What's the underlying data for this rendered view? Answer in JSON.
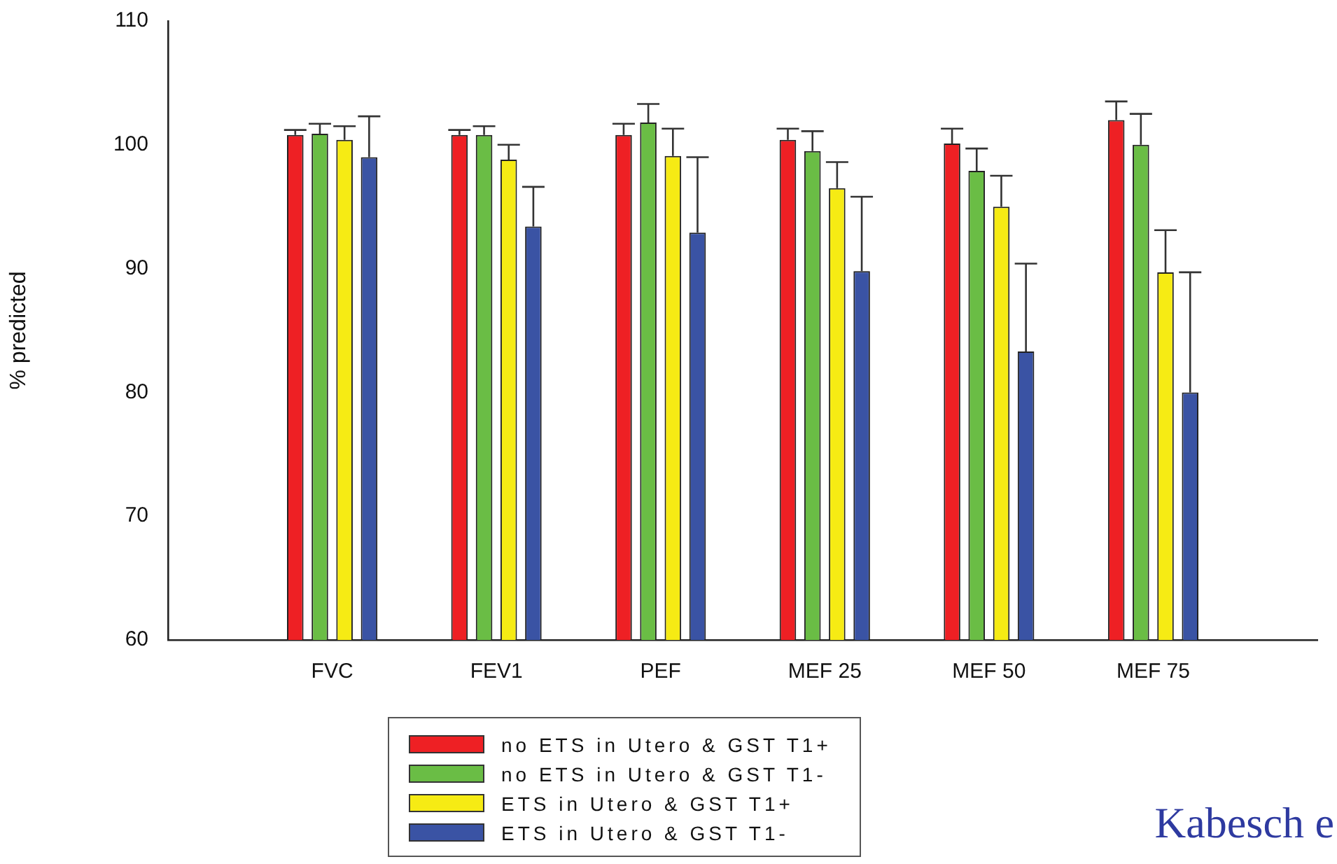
{
  "chart_data": {
    "type": "bar",
    "ylabel": "% predicted",
    "categories": [
      null,
      "FVC",
      "FEV1",
      "PEF",
      "MEF 25",
      "MEF 50",
      "MEF 75",
      null
    ],
    "series": [
      {
        "name": "no ETS in Utero & GST T1+",
        "color": "#ee2024",
        "values": [
          null,
          100.8,
          100.8,
          100.8,
          100.4,
          100.1,
          102.0,
          null
        ],
        "errors": [
          null,
          [
            100.8,
            101.2
          ],
          [
            100.8,
            101.2
          ],
          [
            100.8,
            101.7
          ],
          [
            100.4,
            101.3
          ],
          [
            100.1,
            101.3
          ],
          [
            102.0,
            103.5
          ],
          null
        ]
      },
      {
        "name": "no ETS in Utero & GST T1-",
        "color": "#6abd45",
        "values": [
          null,
          100.9,
          100.8,
          101.8,
          99.5,
          97.9,
          100.0,
          null
        ],
        "errors": [
          null,
          [
            100.9,
            101.7
          ],
          [
            100.8,
            101.5
          ],
          [
            101.8,
            103.3
          ],
          [
            99.5,
            101.1
          ],
          [
            97.9,
            99.7
          ],
          [
            100.0,
            102.5
          ],
          null
        ]
      },
      {
        "name": "ETS in Utero & GST T1+",
        "color": "#f6eb14",
        "values": [
          null,
          100.4,
          98.8,
          99.1,
          96.5,
          95.0,
          89.7,
          null
        ],
        "errors": [
          null,
          [
            100.4,
            101.5
          ],
          [
            98.8,
            100.0
          ],
          [
            99.1,
            101.3
          ],
          [
            96.5,
            98.6
          ],
          [
            95.0,
            97.5
          ],
          [
            89.7,
            93.1
          ],
          null
        ]
      },
      {
        "name": "ETS in Utero & GST T1-",
        "color": "#3a53a4",
        "values": [
          null,
          99.0,
          93.4,
          92.9,
          89.8,
          83.3,
          80.0,
          null
        ],
        "errors": [
          null,
          [
            99.0,
            102.3
          ],
          [
            93.4,
            96.6
          ],
          [
            92.9,
            99.0
          ],
          [
            89.8,
            95.8
          ],
          [
            83.3,
            90.4
          ],
          [
            80.0,
            89.7
          ],
          null
        ]
      }
    ],
    "ylim": [
      60,
      110
    ],
    "yticks": [
      60,
      70,
      80,
      90,
      100,
      110
    ],
    "grid": false,
    "legend": "bottom",
    "annotations": [
      "Kabesch e"
    ]
  }
}
